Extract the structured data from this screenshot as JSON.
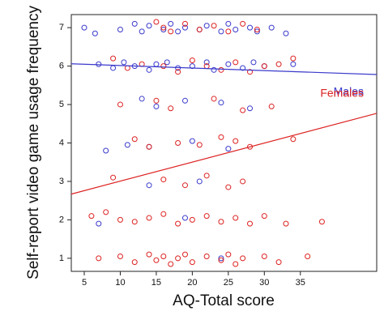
{
  "chart_data": {
    "type": "scatter",
    "x_label": "AQ-Total score",
    "y_label": "Self-report video game usage  frequency",
    "xlim": [
      3.2,
      45.6
    ],
    "ylim": [
      0.66,
      7.34
    ],
    "xticks": [
      5,
      10,
      15,
      20,
      25,
      30,
      35
    ],
    "yticks": [
      1,
      2,
      3,
      4,
      5,
      6,
      7
    ],
    "series": [
      {
        "name": "Males",
        "color": "#3a3acc",
        "x": [
          5,
          6.5,
          10,
          12,
          13,
          14,
          16,
          17,
          18,
          19,
          21,
          22,
          24,
          25,
          26,
          28,
          29,
          31,
          33,
          7,
          9,
          10.5,
          12,
          14,
          15,
          16.5,
          18,
          20,
          22,
          23,
          25,
          27,
          28.5,
          30,
          34,
          13,
          15,
          19,
          24,
          28,
          8,
          11,
          14,
          20,
          25,
          14,
          21,
          7,
          19,
          24
        ],
        "y": [
          7.0,
          6.85,
          6.95,
          7.1,
          6.9,
          7.05,
          6.95,
          7.1,
          6.9,
          7.0,
          6.95,
          7.05,
          6.9,
          7.1,
          6.95,
          7.0,
          6.9,
          7.0,
          6.85,
          6.05,
          5.95,
          6.1,
          6.0,
          5.9,
          6.05,
          6.1,
          5.95,
          6.0,
          6.1,
          5.9,
          6.05,
          5.95,
          6.1,
          6.0,
          6.05,
          5.15,
          4.95,
          5.1,
          5.05,
          4.9,
          3.8,
          3.95,
          3.9,
          4.05,
          3.85,
          2.9,
          3.0,
          1.9,
          2.05,
          1.0
        ],
        "trend": {
          "x": [
            3.2,
            45.6
          ],
          "y": [
            6.06,
            5.78
          ]
        }
      },
      {
        "name": "Females",
        "color": "#dd2222",
        "x": [
          15,
          16,
          17,
          19,
          21,
          23,
          25,
          27,
          29,
          9,
          11,
          13,
          16,
          18,
          20,
          22,
          24,
          26,
          28,
          30,
          32,
          34,
          10,
          15,
          17,
          23,
          27,
          31,
          12,
          14,
          18,
          21,
          24,
          26,
          28,
          34,
          9,
          16,
          19,
          22,
          25,
          27,
          6,
          8,
          10,
          12,
          14,
          16,
          18,
          20,
          22,
          24,
          26,
          28,
          30,
          33,
          38,
          7,
          10,
          12,
          14,
          15,
          16,
          17,
          18,
          19,
          20,
          22,
          24,
          25,
          26,
          27,
          30,
          32,
          36
        ],
        "y": [
          7.15,
          7.0,
          6.9,
          7.1,
          6.95,
          7.05,
          6.9,
          7.1,
          6.95,
          6.2,
          5.95,
          6.05,
          6.0,
          5.85,
          6.15,
          6.0,
          5.9,
          6.1,
          5.85,
          6.0,
          6.05,
          6.2,
          5.0,
          5.1,
          4.9,
          5.15,
          4.85,
          4.95,
          4.1,
          3.9,
          4.0,
          3.95,
          4.15,
          4.05,
          3.9,
          4.1,
          3.1,
          3.05,
          2.9,
          3.15,
          2.85,
          3.0,
          2.1,
          2.2,
          2.0,
          1.95,
          2.05,
          2.15,
          1.9,
          2.0,
          2.1,
          1.95,
          2.05,
          1.9,
          2.1,
          1.9,
          1.95,
          1.0,
          1.05,
          0.9,
          1.1,
          0.95,
          1.05,
          0.85,
          1.0,
          1.1,
          0.9,
          1.05,
          0.95,
          1.1,
          0.85,
          1.0,
          1.05,
          0.9,
          1.05
        ],
        "trend": {
          "x": [
            3.2,
            45.6
          ],
          "y": [
            2.67,
            4.77
          ]
        }
      }
    ]
  }
}
